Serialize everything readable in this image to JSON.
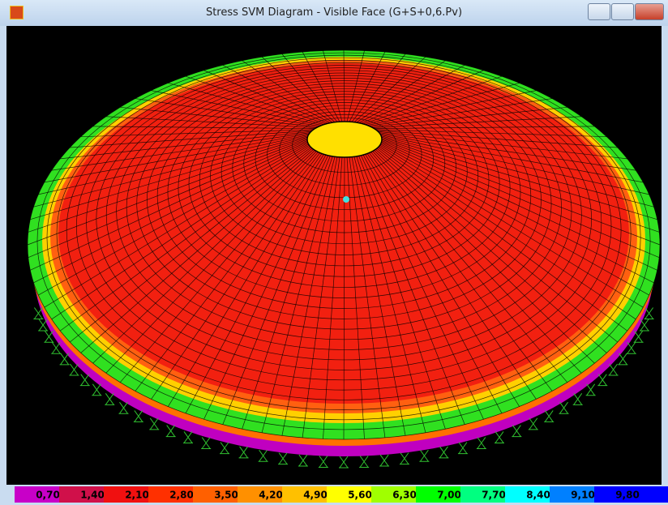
{
  "window": {
    "title": "Stress SVM Diagram - Visible Face    (G+S+0,6.Pv)"
  },
  "legend": {
    "labels": [
      "0,70",
      "1,40",
      "2,10",
      "2,80",
      "3,50",
      "4,20",
      "4,90",
      "5,60",
      "6,30",
      "7,00",
      "7,70",
      "8,40",
      "9,10",
      "9,80"
    ],
    "colors": [
      "#c800c8",
      "#d0104a",
      "#f01010",
      "#ff3000",
      "#ff6000",
      "#ff9000",
      "#ffc000",
      "#ffff00",
      "#a0ff00",
      "#00ff00",
      "#00ff80",
      "#00ffff",
      "#0080ff",
      "#0000ff"
    ]
  }
}
